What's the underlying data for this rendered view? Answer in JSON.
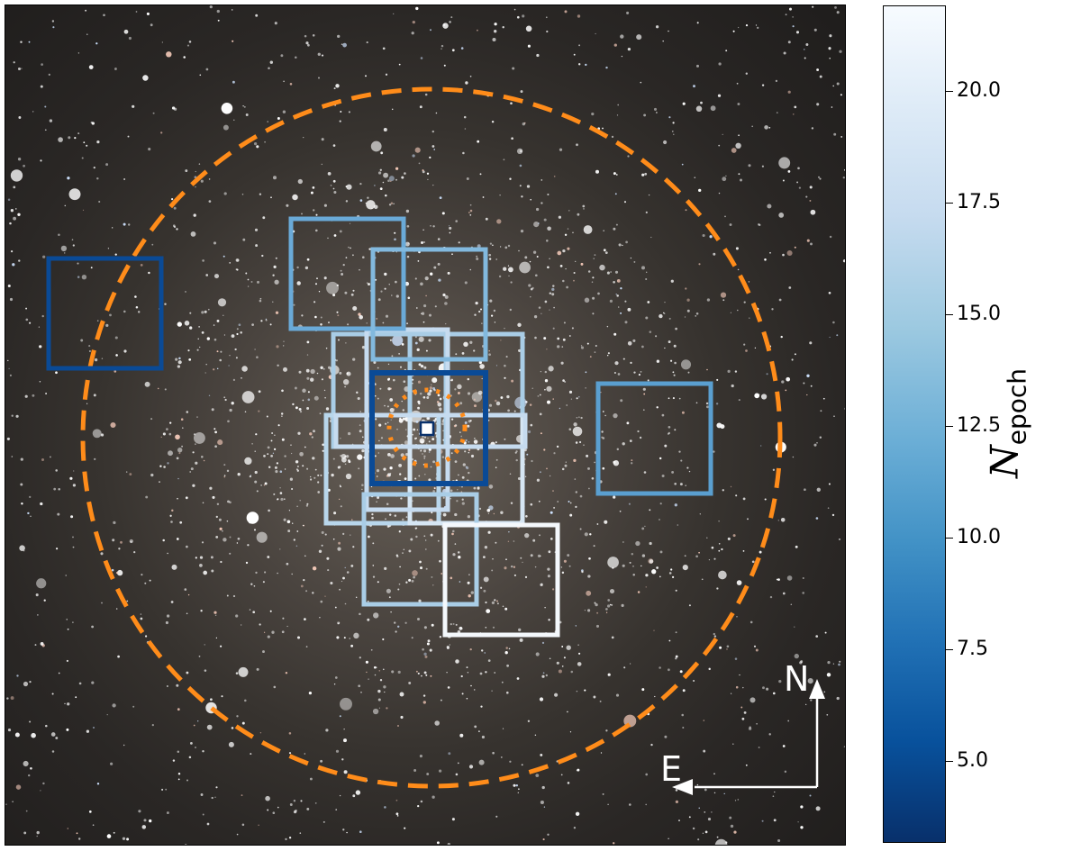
{
  "compass": {
    "north_label": "N",
    "east_label": "E"
  },
  "colorbar": {
    "title_symbol": "N",
    "title_subscript": "epoch",
    "ticks": [
      "5.0",
      "7.5",
      "10.0",
      "12.5",
      "15.0",
      "17.5",
      "20.0"
    ],
    "colormap": [
      "#f7fbff",
      "#deebf7",
      "#c6dbef",
      "#9ecae1",
      "#6baed6",
      "#4292c6",
      "#2171b5",
      "#08519c",
      "#08306b"
    ]
  },
  "colors": {
    "circle": "#ff8c1a",
    "compass": "#ffffff",
    "field_darkest": "#0a4a96",
    "field_mid": "#5a9fd0",
    "field_light": "#a9cde6",
    "field_white": "#f4f8fc",
    "center_box": "#08306b"
  }
}
